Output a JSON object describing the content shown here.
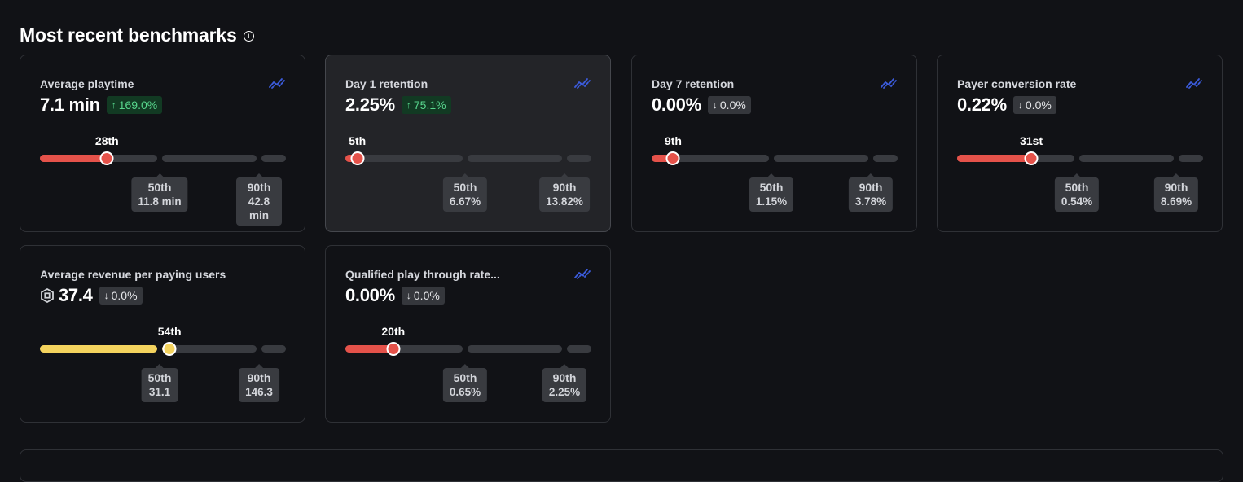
{
  "page": {
    "title": "Most recent benchmarks"
  },
  "colors": {
    "red": "#e5524a",
    "yellow": "#f4d35e",
    "trend_icon": "#3b5bdb",
    "up": "#58d68d"
  },
  "cards": [
    {
      "title": "Average playtime",
      "value": "7.1 min",
      "change": "169.0%",
      "change_dir": "up",
      "percentile_label": "28th",
      "percentile": 28,
      "color": "red",
      "p50": {
        "label": "50th",
        "value": "11.8 min"
      },
      "p90": {
        "label": "90th",
        "value": "42.8 min"
      },
      "trend_icon": "trend-chart-icon"
    },
    {
      "title": "Day 1 retention",
      "value": "2.25%",
      "change": "75.1%",
      "change_dir": "up",
      "percentile_label": "5th",
      "percentile": 5,
      "color": "red",
      "p50": {
        "label": "50th",
        "value": "6.67%"
      },
      "p90": {
        "label": "90th",
        "value": "13.82%"
      },
      "trend_icon": "trend-chart-icon"
    },
    {
      "title": "Day 7 retention",
      "value": "0.00%",
      "change": "0.0%",
      "change_dir": "down",
      "percentile_label": "9th",
      "percentile": 9,
      "color": "red",
      "p50": {
        "label": "50th",
        "value": "1.15%"
      },
      "p90": {
        "label": "90th",
        "value": "3.78%"
      },
      "trend_icon": "trend-chart-icon"
    },
    {
      "title": "Payer conversion rate",
      "value": "0.22%",
      "change": "0.0%",
      "change_dir": "down",
      "percentile_label": "31st",
      "percentile": 31,
      "color": "red",
      "p50": {
        "label": "50th",
        "value": "0.54%"
      },
      "p90": {
        "label": "90th",
        "value": "8.69%"
      },
      "trend_icon": "trend-chart-icon"
    },
    {
      "title": "Average revenue per paying users",
      "value": "37.4",
      "change": "0.0%",
      "change_dir": "down",
      "percentile_label": "54th",
      "percentile": 54,
      "color": "yellow",
      "currency_icon": "robux-icon",
      "p50": {
        "label": "50th",
        "value": "31.1"
      },
      "p90": {
        "label": "90th",
        "value": "146.3"
      }
    },
    {
      "title": "Qualified play through rate...",
      "value": "0.00%",
      "change": "0.0%",
      "change_dir": "down",
      "percentile_label": "20th",
      "percentile": 20,
      "color": "red",
      "p50": {
        "label": "50th",
        "value": "0.65%"
      },
      "p90": {
        "label": "90th",
        "value": "2.25%"
      },
      "trend_icon": "trend-chart-icon"
    }
  ]
}
